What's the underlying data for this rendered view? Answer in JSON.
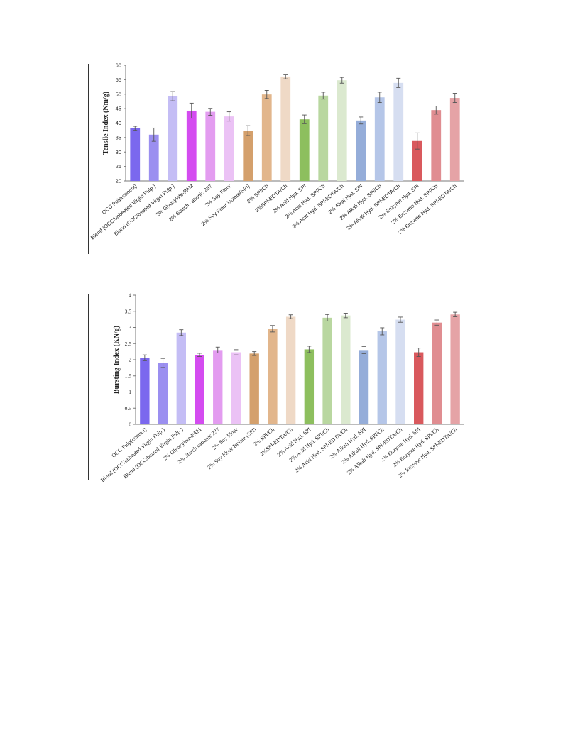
{
  "colors": [
    "#7b68ee",
    "#9b8ff0",
    "#c4bdf5",
    "#d44cf0",
    "#e39cf0",
    "#ebc2f5",
    "#d4a06c",
    "#e2b68c",
    "#efd9c6",
    "#8dbf5e",
    "#b9d7a0",
    "#dbe9cf",
    "#95add9",
    "#b5c6e8",
    "#d6def1",
    "#d9595d",
    "#e08d91",
    "#e5a3a6"
  ],
  "chart_data": [
    {
      "type": "bar",
      "ylabel": "Tensile Index (Nm/g)",
      "ylim": [
        20,
        60
      ],
      "yticks": [
        "20",
        "25",
        "30",
        "35",
        "40",
        "45",
        "50",
        "55",
        "60"
      ],
      "categories": [
        "OCC Pulp(control)",
        "Blend (OCC/unbeated Virgin Pulp )",
        "Blend (OCC/beated Virgin Pulp )",
        "2% Glyoxylate-PAM",
        "2% Starch cationic 237",
        "2% Soy Flour",
        "2% Soy Flour Isolate(SPI)",
        "2% SPI/Ch",
        "2%SPI-EDTA/Ch",
        "2% Acid Hyd. SPI",
        "2% Acid Hyd. SPI/Ch",
        "2% Acid Hyd. SPI-EDTA/Ch",
        "2% Alkai Hyd. SPI",
        "2% Alkali Hyd. SPI/Ch",
        "2% Alkali Hyd. SPI-EDTA/Ch",
        "2% Enzyme Hyd. SPI",
        "2% Enzyme Hyd. SPI/Ch",
        "2% Enzyme Hyd. SPI-EDTA/Ch"
      ],
      "values": [
        38.2,
        36.0,
        49.3,
        44.3,
        43.9,
        42.3,
        37.4,
        49.9,
        56.1,
        41.3,
        49.5,
        54.8,
        40.9,
        48.9,
        53.9,
        33.8,
        44.5,
        48.7
      ],
      "errors": [
        0.7,
        2.3,
        1.6,
        2.6,
        1.2,
        1.6,
        1.7,
        1.4,
        0.8,
        1.5,
        1.2,
        1.0,
        1.2,
        1.8,
        1.6,
        2.8,
        1.4,
        1.6
      ]
    },
    {
      "type": "bar",
      "ylabel": "Bursting Index (KN/g)",
      "ylim": [
        0,
        4
      ],
      "yticks": [
        "0",
        "0.5",
        "1",
        "1.5",
        "2",
        "2.5",
        "3",
        "3.5",
        "4"
      ],
      "categories": [
        "OCC Pulp(control)",
        "Blend (OCC/unbeated Virgin Pulp )",
        "Blend (OCC/beated Virgin Pulp )",
        "2% Glyoxylate-PAM",
        "2% Starch cationic 237",
        "2% Soy Flour",
        "2% Soy Flour Isolate (SPI)",
        "2% SPI/Ch",
        "2%SPI-EDTA/Ch",
        "2% Acid Hyd. SPI",
        "2% Acid Hyd. SPI/Ch",
        "2% Acid Hyd. SPI-EDTA/Ch",
        "2% Alkali Hyd. SPI",
        "2% Alkali Hyd. SPI/Ch",
        "2% Alkali Hyd. SPI-EDTA/Ch",
        "2% Enzyme Hyd. SPI",
        "2% Enzyme Hyd. SPI/Ch",
        "2% Enzyme Hyd. SPI-EDTA/Ch"
      ],
      "values": [
        2.06,
        1.9,
        2.84,
        2.15,
        2.3,
        2.23,
        2.19,
        2.96,
        3.33,
        2.32,
        3.3,
        3.37,
        2.3,
        2.88,
        3.24,
        2.23,
        3.15,
        3.4
      ],
      "errors": [
        0.09,
        0.14,
        0.09,
        0.05,
        0.09,
        0.08,
        0.06,
        0.1,
        0.06,
        0.1,
        0.1,
        0.07,
        0.11,
        0.11,
        0.08,
        0.13,
        0.08,
        0.07
      ]
    }
  ]
}
